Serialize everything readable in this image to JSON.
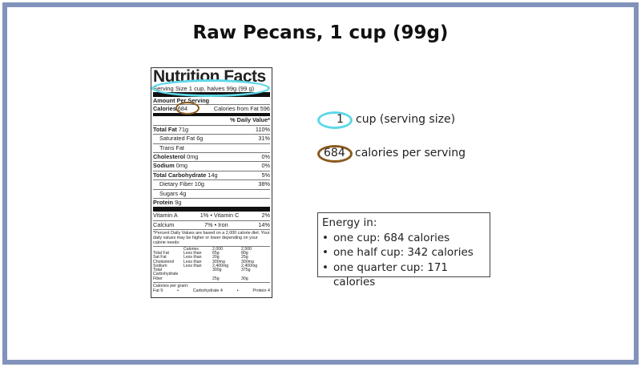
{
  "title": "Raw Pecans, 1 cup (99g)",
  "label": {
    "heading": "Nutrition Facts",
    "serving": "Serving Size 1 cup, halves 99g (99 g)",
    "amount": "Amount Per Serving",
    "calories_label": "Calories",
    "calories": "684",
    "cal_fat": "Calories from Fat 596",
    "dv_header": "% Daily Value*",
    "rows": [
      {
        "name": "Total Fat",
        "amt": "71g",
        "dv": "110%",
        "bold": true,
        "indent": false
      },
      {
        "name": "Saturated Fat",
        "amt": "6g",
        "dv": "31%",
        "bold": false,
        "indent": true
      },
      {
        "name": "Trans Fat",
        "amt": "",
        "dv": "",
        "bold": false,
        "indent": true
      },
      {
        "name": "Cholesterol",
        "amt": "0mg",
        "dv": "0%",
        "bold": true,
        "indent": false
      },
      {
        "name": "Sodium",
        "amt": "0mg",
        "dv": "0%",
        "bold": true,
        "indent": false
      },
      {
        "name": "Total Carbohydrate",
        "amt": "14g",
        "dv": "5%",
        "bold": true,
        "indent": false
      },
      {
        "name": "Dietary Fiber",
        "amt": "10g",
        "dv": "38%",
        "bold": false,
        "indent": true
      },
      {
        "name": "Sugars",
        "amt": "4g",
        "dv": "",
        "bold": false,
        "indent": true
      },
      {
        "name": "Protein",
        "amt": "9g",
        "dv": "",
        "bold": true,
        "indent": false
      }
    ],
    "vit_a": "Vitamin A",
    "vit_a_dv": "1%",
    "vit_c": "Vitamin C",
    "vit_c_dv": "2%",
    "calcium": "Calcium",
    "calcium_dv": "7%",
    "iron": "Iron",
    "iron_dv": "14%",
    "footnote": "*Percent Daily Values are based on a 2,000 calorie diet. Your daily values may be higher or lower depending on your calorie needs:",
    "grid": [
      [
        "",
        "Calories",
        "2,000",
        "2,500"
      ],
      [
        "Total Fat",
        "Less than",
        "65g",
        "80g"
      ],
      [
        "Sat Fat",
        "Less than",
        "20g",
        "25g"
      ],
      [
        "Cholesterol",
        "Less than",
        "300mg",
        "300mg"
      ],
      [
        "Sodium",
        "Less than",
        "2,400mg",
        "2,400mg"
      ],
      [
        "Total Carbohydrate",
        "",
        "300g",
        "375g"
      ],
      [
        "Fiber",
        "",
        "25g",
        "30g"
      ]
    ],
    "per_gram": "Calories per gram:",
    "per_gram_items": [
      "Fat 9",
      "Carbohydrate 4",
      "Protein 4"
    ]
  },
  "legend": {
    "serving_value": "1",
    "serving_text": "cup (serving size)",
    "cal_value": "684",
    "cal_text": "calories per serving"
  },
  "energy": {
    "heading": "Energy in:",
    "items": [
      "one cup: 684 calories",
      "one half cup: 342 calories",
      "one quarter cup: 171 calories"
    ]
  },
  "colors": {
    "cyan": "#5ed8e8",
    "brown": "#8a5a1e",
    "frame": "#8193bb"
  }
}
